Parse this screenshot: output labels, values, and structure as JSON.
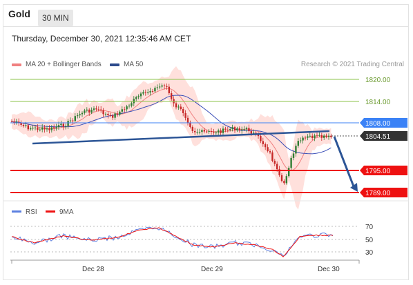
{
  "header": {
    "title": "Gold",
    "timeframe": "30 MIN"
  },
  "datetime": "Thursday, December 30, 2021 12:35:46 AM CET",
  "legend": {
    "ma20": "MA 20 + Bollinger Bands",
    "ma50": "MA 50",
    "copyright": "Research © 2021 Trading Central"
  },
  "levels": [
    {
      "value": "1820.00",
      "color": "#7cb342"
    },
    {
      "value": "1814.00",
      "color": "#7cb342"
    },
    {
      "value": "1808.00",
      "color": "#3b82f6"
    },
    {
      "value": "1804.51",
      "color": "#333333"
    },
    {
      "value": "1795.00",
      "color": "#ee1111"
    },
    {
      "value": "1789.00",
      "color": "#ee1111"
    }
  ],
  "rsi_legend": {
    "rsi": "RSI",
    "ma": "9MA"
  },
  "rsi_levels": [
    "70",
    "50",
    "30"
  ],
  "x_labels": [
    "Dec 28",
    "Dec 29",
    "Dec 30"
  ],
  "colors": {
    "up": "#2e7d32",
    "down": "#c62828",
    "band": "#ffd6d0",
    "ma50": "#3b4fb8",
    "trend": "#2c5596"
  }
}
